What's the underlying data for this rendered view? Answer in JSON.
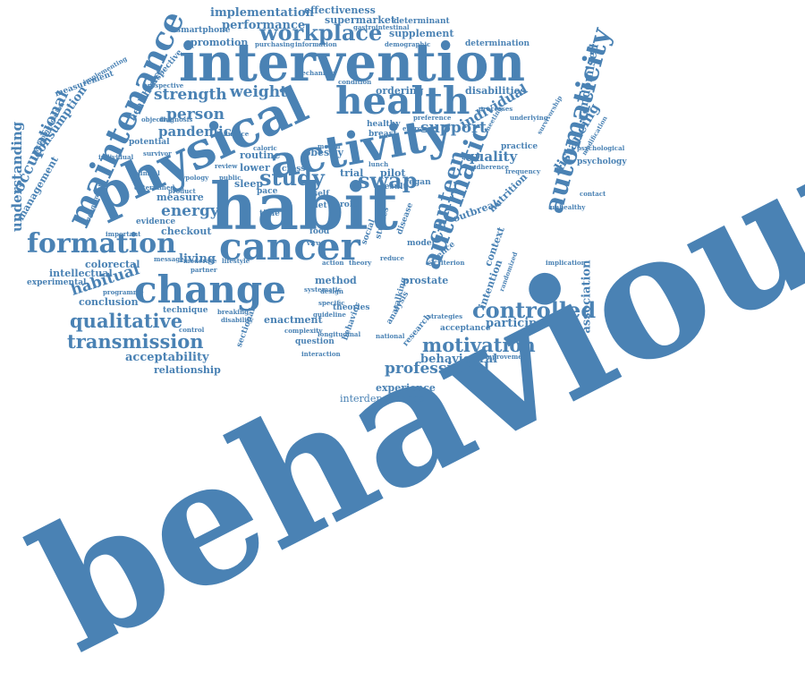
{
  "words": {
    "behaviour": "behaviour",
    "intervention": "intervention",
    "physical": "physical",
    "activity": "activity",
    "habit": "habit",
    "cancer": "cancer",
    "change": "change",
    "health": "health",
    "maintenance": "maintenance",
    "formation": "formation",
    "automaticity": "automaticity",
    "automatic": "automatic",
    "workplace": "workplace",
    "study": "study",
    "canteen": "canteen",
    "swap": "swap",
    "motivation": "motivation",
    "transmission": "transmission",
    "qualitative": "qualitative",
    "controlled": "controlled",
    "professional": "professional",
    "habitual": "habitual",
    "occupational": "occupational",
    "understanding": "understanding",
    "energy": "energy",
    "strength": "strength",
    "weight": "weight",
    "person": "person",
    "pandemic": "pandemic",
    "support": "support",
    "individual": "individual",
    "distancing": "distancing",
    "randomised": "randomised",
    "randomized": "randomized",
    "quality": "quality",
    "association": "association",
    "acceptability": "acceptability",
    "relationship": "relationship",
    "participant": "participant",
    "behavioural": "behavioural",
    "experience": "experience",
    "interdependence": "interdependence",
    "implementation": "implementation",
    "effectiveness": "effectiveness",
    "performance": "performance",
    "supermarket": "supermarket",
    "supplement": "supplement",
    "determinant": "determinant",
    "determination": "determination",
    "smartphone": "smartphone",
    "promotion": "promotion",
    "ordering": "ordering",
    "disabilities": "disabilities",
    "consumption": "consumption",
    "management": "management",
    "healthcare": "healthcare",
    "measurement": "measurement",
    "perspective": "perspective",
    "implementing": "implementing",
    "colorectal": "colorectal",
    "conclusion": "conclusion",
    "intellectual": "intellectual",
    "experimental": "experimental",
    "living": "living",
    "checkout": "checkout",
    "measure": "measure",
    "routine": "routine",
    "lower": "lower",
    "sleep": "sleep",
    "obesity": "obesity",
    "trial": "trial",
    "pilot": "pilot",
    "result": "result",
    "method": "method",
    "prostate": "prostate",
    "enactment": "enactment",
    "technique": "technique",
    "question": "question",
    "acceptance": "acceptance",
    "research": "research",
    "analysis": "analysis",
    "intention": "intention",
    "context": "context",
    "outbreak": "outbreak",
    "nutrition": "nutrition",
    "psychology": "psychology",
    "practice": "practice",
    "improvement": "improvement",
    "theories": "theories",
    "model": "model",
    "vegan": "vegan",
    "healthy": "healthy",
    "breast": "breast",
    "evidence": "evidence",
    "objective": "objective",
    "potential": "potential",
    "survivor": "survivor",
    "engagement": "engagement",
    "recommendation": "recommendation",
    "important": "important",
    "programme": "programme",
    "diet": "diet",
    "time": "time",
    "pace": "pace",
    "self": "self",
    "food": "food",
    "cross": "cross",
    "month": "month",
    "role": "role",
    "social": "social",
    "studies": "studies",
    "disease": "disease",
    "science": "science",
    "criterion": "criterion",
    "walking": "walking",
    "strategies": "strategies",
    "reduce": "reduce",
    "theory": "theory",
    "design": "design",
    "interaction": "interaction",
    "complexity": "complexity",
    "guideline": "guideline",
    "sectional": "sectional",
    "behavior": "behavior",
    "partner": "partner",
    "message": "message",
    "breaking": "breaking",
    "lifestyle": "lifestyle",
    "moderate": "moderate",
    "frequency": "frequency",
    "underlying": "underlying",
    "modification": "modification",
    "implication": "implication",
    "purchasing": "purchasing",
    "information": "information",
    "demographic": "demographic",
    "gastrointestinal": "gastrointestinal",
    "product": "product",
    "diagnosis": "diagnosis",
    "influence": "influence",
    "prospective": "prospective",
    "mechanism": "mechanism",
    "condition": "condition",
    "national": "national",
    "specific": "specific",
    "virus": "virus",
    "public": "public",
    "review": "review",
    "caloric": "caloric",
    "preference": "preference",
    "meeting": "meeting",
    "survivorship": "survivorship",
    "processes": "processes",
    "longitudinal": "longitudinal",
    "adherence": "adherence",
    "control": "control",
    "exercise": "exercise",
    "lunch": "lunch",
    "disability": "disability",
    "systematic": "systematic",
    "action": "action",
    "typology": "typology",
    "contact": "contact",
    "clinical": "clinical",
    "psychological": "psychological",
    "unhealthy": "unhealthy",
    "individual_small": "individual",
    "determined": "determined"
  }
}
